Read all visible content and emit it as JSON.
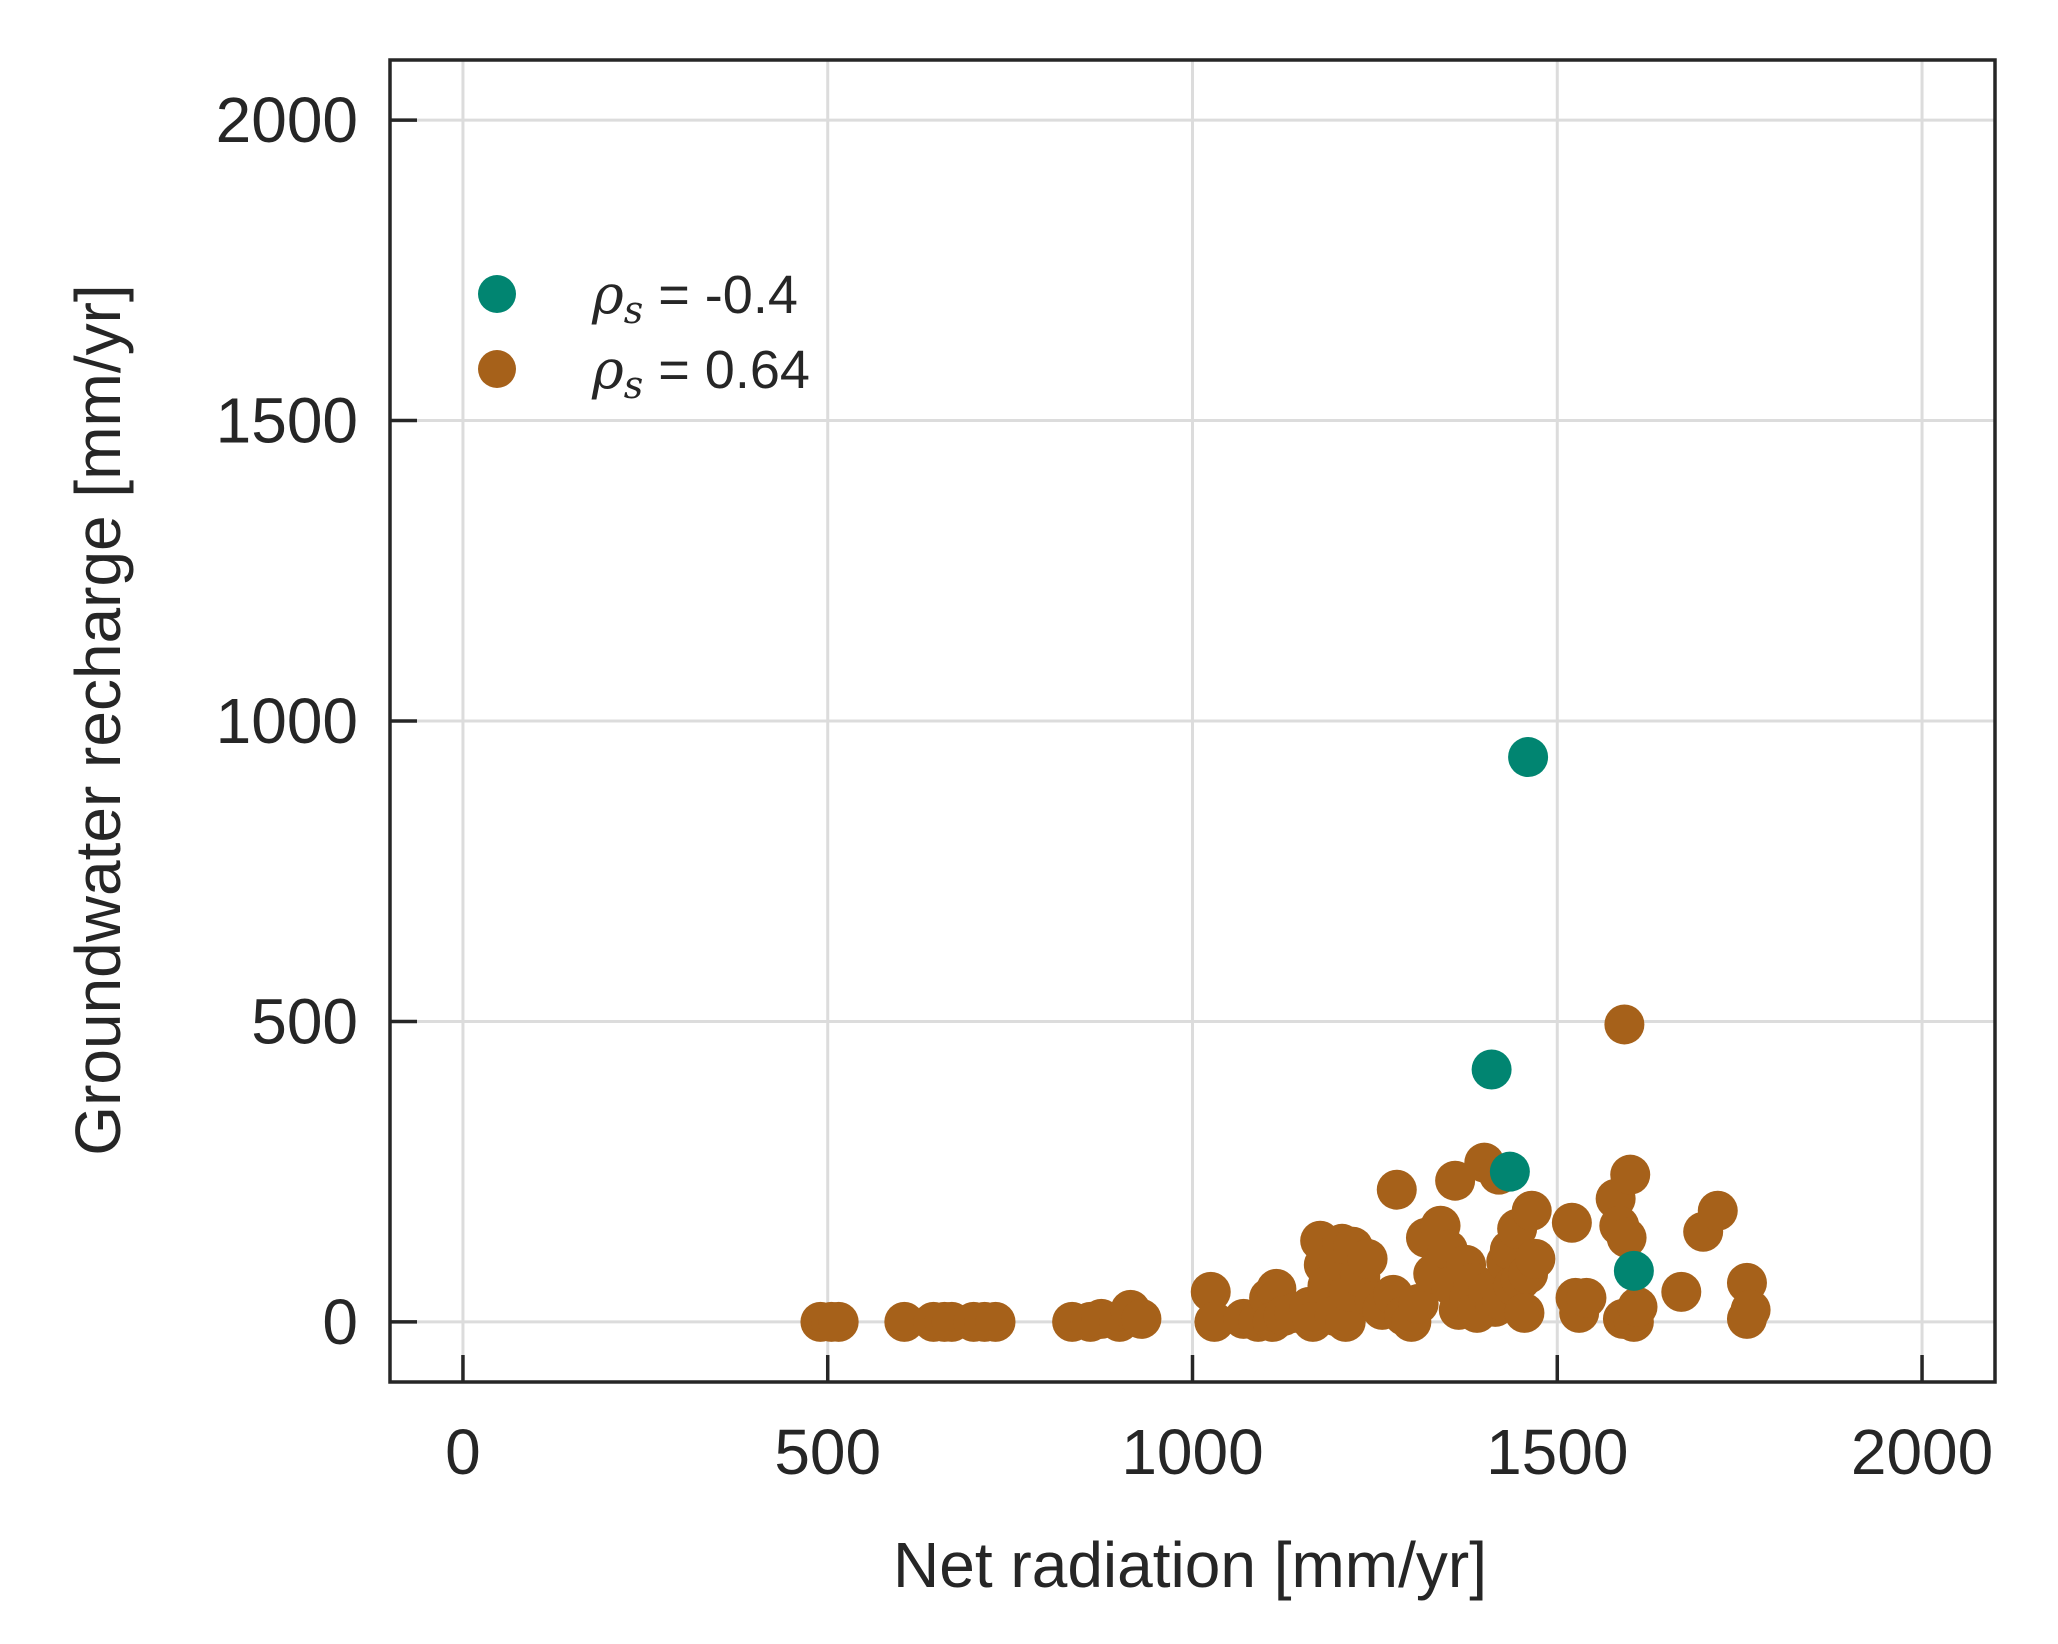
{
  "chart_data": {
    "type": "scatter",
    "xlabel": "Net radiation [mm/yr]",
    "ylabel": "Groundwater recharge [mm/yr]",
    "xlim": [
      -100,
      2100
    ],
    "ylim": [
      -100,
      2100
    ],
    "xticks": [
      "0",
      "500",
      "1000",
      "1500",
      "2000"
    ],
    "yticks": [
      "0",
      "500",
      "1000",
      "1500",
      "2000"
    ],
    "grid": true,
    "legend_placement": "upper-left",
    "series": [
      {
        "name": "ρs = -0.4",
        "legend_symbol": "ρ",
        "legend_subscript": "s",
        "legend_value": " = -0.4",
        "color": "#018571",
        "points": [
          [
            1460,
            940
          ],
          [
            1410,
            420
          ],
          [
            1435,
            250
          ],
          [
            1605,
            85
          ]
        ]
      },
      {
        "name": "ρs = 0.64",
        "legend_symbol": "ρ",
        "legend_subscript": "s",
        "legend_value": " = 0.64",
        "color": "#a6611a",
        "points": [
          [
            490,
            0
          ],
          [
            505,
            0
          ],
          [
            515,
            0
          ],
          [
            605,
            0
          ],
          [
            645,
            0
          ],
          [
            660,
            0
          ],
          [
            670,
            0
          ],
          [
            700,
            0
          ],
          [
            715,
            0
          ],
          [
            730,
            0
          ],
          [
            835,
            0
          ],
          [
            860,
            0
          ],
          [
            875,
            5
          ],
          [
            900,
            0
          ],
          [
            915,
            20
          ],
          [
            930,
            5
          ],
          [
            1025,
            50
          ],
          [
            1030,
            0
          ],
          [
            1070,
            5
          ],
          [
            1090,
            0
          ],
          [
            1105,
            40
          ],
          [
            1115,
            55
          ],
          [
            1110,
            0
          ],
          [
            1125,
            10
          ],
          [
            1140,
            15
          ],
          [
            1160,
            25
          ],
          [
            1165,
            0
          ],
          [
            1175,
            135
          ],
          [
            1180,
            95
          ],
          [
            1185,
            60
          ],
          [
            1195,
            10
          ],
          [
            1200,
            100
          ],
          [
            1205,
            130
          ],
          [
            1210,
            0
          ],
          [
            1215,
            50
          ],
          [
            1220,
            125
          ],
          [
            1230,
            75
          ],
          [
            1240,
            105
          ],
          [
            1250,
            35
          ],
          [
            1260,
            20
          ],
          [
            1275,
            45
          ],
          [
            1280,
            220
          ],
          [
            1290,
            10
          ],
          [
            1300,
            0
          ],
          [
            1310,
            30
          ],
          [
            1320,
            140
          ],
          [
            1330,
            80
          ],
          [
            1340,
            160
          ],
          [
            1350,
            120
          ],
          [
            1355,
            60
          ],
          [
            1360,
            235
          ],
          [
            1365,
            20
          ],
          [
            1375,
            95
          ],
          [
            1380,
            40
          ],
          [
            1385,
            65
          ],
          [
            1390,
            15
          ],
          [
            1400,
            265
          ],
          [
            1405,
            50
          ],
          [
            1415,
            25
          ],
          [
            1420,
            245
          ],
          [
            1425,
            35
          ],
          [
            1430,
            100
          ],
          [
            1435,
            120
          ],
          [
            1440,
            60
          ],
          [
            1445,
            155
          ],
          [
            1450,
            70
          ],
          [
            1455,
            15
          ],
          [
            1460,
            80
          ],
          [
            1465,
            185
          ],
          [
            1470,
            105
          ],
          [
            1520,
            165
          ],
          [
            1525,
            40
          ],
          [
            1530,
            15
          ],
          [
            1540,
            40
          ],
          [
            1580,
            205
          ],
          [
            1585,
            160
          ],
          [
            1590,
            5
          ],
          [
            1595,
            140
          ],
          [
            1592,
            495
          ],
          [
            1600,
            245
          ],
          [
            1605,
            0
          ],
          [
            1610,
            25
          ],
          [
            1670,
            50
          ],
          [
            1700,
            150
          ],
          [
            1720,
            185
          ],
          [
            1760,
            65
          ],
          [
            1765,
            20
          ],
          [
            1760,
            5
          ]
        ]
      }
    ]
  }
}
